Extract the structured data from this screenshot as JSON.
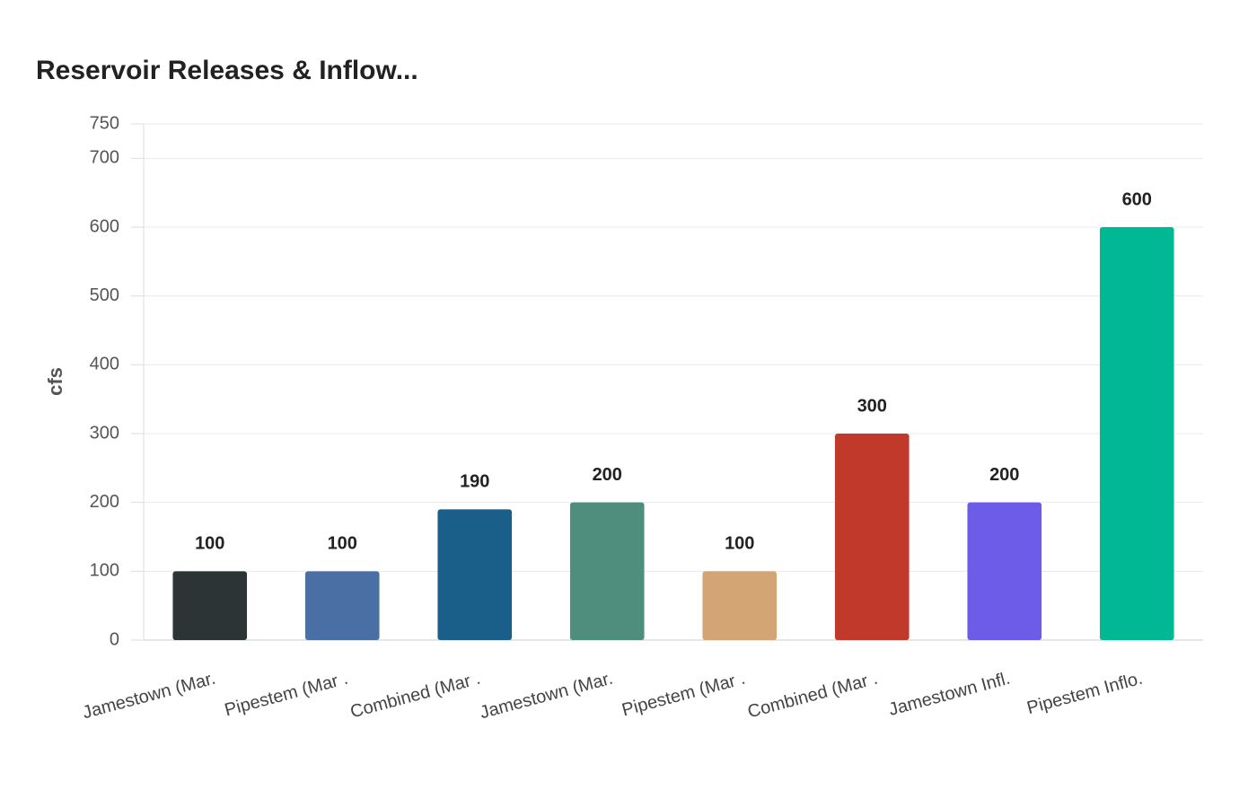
{
  "chart_data": {
    "type": "bar",
    "title": "Reservoir Releases & Inflow...",
    "y_label": "cfs",
    "categories": [
      "Jamestown (Mar.",
      "Pipestem (Mar .",
      "Combined (Mar .",
      "Jamestown (Mar.",
      "Pipestem (Mar .",
      "Combined (Mar .",
      "Jamestown Infl.",
      "Pipestem Inflo."
    ],
    "values": [
      100,
      100,
      190,
      200,
      100,
      300,
      200,
      600
    ],
    "colors": [
      "#2d3436",
      "#4a6fa5",
      "#1a5f8a",
      "#4f8d7c",
      "#d4a574",
      "#c0392b",
      "#6c5ce7",
      "#00b894"
    ],
    "ylim": [
      0,
      750
    ],
    "yticks": [
      0,
      100,
      200,
      300,
      400,
      500,
      600,
      700,
      750
    ],
    "grid": true
  }
}
